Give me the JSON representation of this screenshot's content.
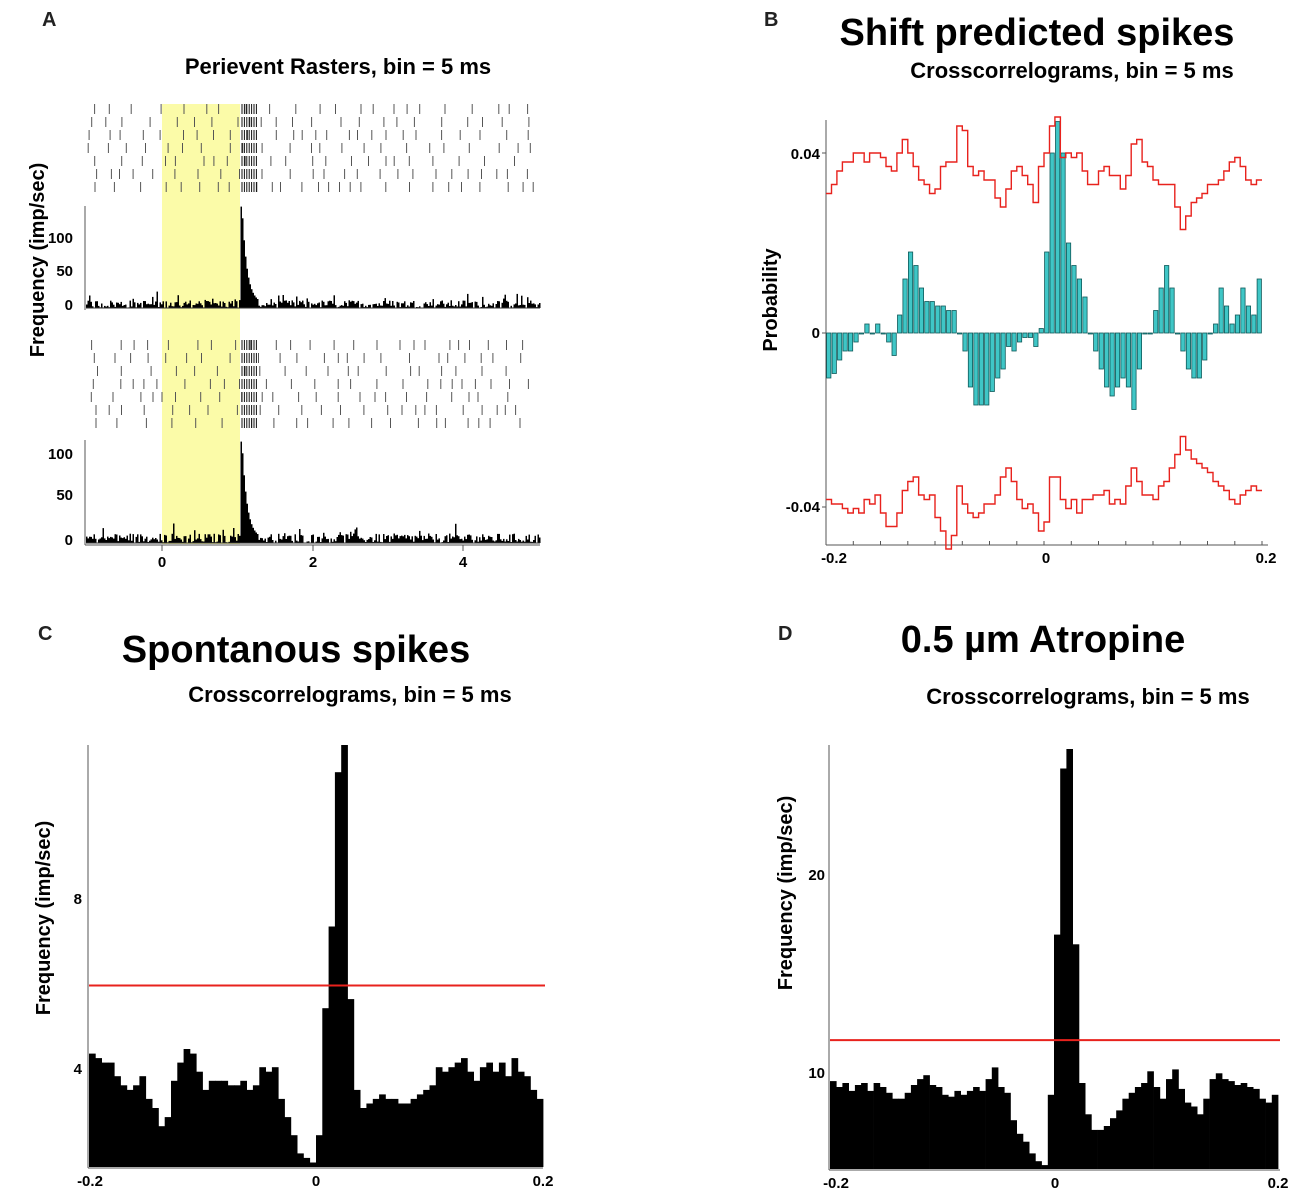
{
  "colors": {
    "bar": "#000000",
    "teal": "#3fc6c6",
    "teal_stroke": "#0f5a5a",
    "red": "#e8221d",
    "highlight": "#fbfba8",
    "axis": "#555555"
  },
  "panels": {
    "A": {
      "letter": "A",
      "subtitle": "Perievent Rasters, bin = 5 ms",
      "ylabel": "Frequency (imp/sec)",
      "xticks": [
        "0",
        "2",
        "4"
      ],
      "top_yticks": [
        "100",
        "50",
        "0"
      ],
      "bottom_yticks": [
        "100",
        "50",
        "0"
      ]
    },
    "B": {
      "letter": "B",
      "title": "Shift predicted spikes",
      "subtitle": "Crosscorrelograms, bin = 5 ms",
      "ylabel": "Probability",
      "xticks": [
        "-0.2",
        "0",
        "0.2"
      ],
      "yticks": [
        "0.04",
        "0",
        "-0.04"
      ]
    },
    "C": {
      "letter": "C",
      "title": "Spontanous spikes",
      "subtitle": "Crosscorrelograms, bin = 5 ms",
      "ylabel": "Frequency (imp/sec)",
      "xticks": [
        "-0.2",
        "0",
        "0.2"
      ],
      "yticks": [
        "8",
        "4"
      ]
    },
    "D": {
      "letter": "D",
      "title": "0.5 µm Atropine",
      "subtitle": "Crosscorrelograms, bin = 5 ms",
      "ylabel": "Frequency (imp/sec)",
      "xticks": [
        "-0.2",
        "0",
        "0.2"
      ],
      "yticks": [
        "20",
        "10"
      ]
    }
  },
  "chart_data": [
    {
      "id": "A-top-psth",
      "type": "bar",
      "title": "Perievent Rasters, bin = 5 ms",
      "ylabel": "Frequency (imp/sec)",
      "xlim": [
        -1,
        5
      ],
      "ylim": [
        0,
        130
      ],
      "stimulus_window": [
        0,
        1
      ],
      "peak": {
        "x": 1.05,
        "value": 128
      },
      "baseline": 10
    },
    {
      "id": "A-bottom-psth",
      "type": "bar",
      "ylabel": "Frequency (imp/sec)",
      "xlim": [
        -1,
        5
      ],
      "ylim": [
        0,
        130
      ],
      "stimulus_window": [
        0,
        1
      ],
      "peak": {
        "x": 1.05,
        "value": 128
      },
      "baseline": 12
    },
    {
      "id": "B",
      "type": "bar",
      "title": "Shift predicted spikes",
      "subtitle": "Crosscorrelograms, bin = 5 ms",
      "xlabel": "",
      "ylabel": "Probability",
      "xlim": [
        -0.2,
        0.2
      ],
      "ylim": [
        -0.048,
        0.048
      ],
      "x_start": -0.2,
      "bin": 0.005,
      "values": [
        -0.01,
        -0.009,
        -0.006,
        -0.004,
        -0.004,
        -0.002,
        0.0,
        0.002,
        0.0,
        0.002,
        0.0,
        -0.002,
        -0.005,
        0.004,
        0.012,
        0.018,
        0.015,
        0.01,
        0.007,
        0.007,
        0.006,
        0.006,
        0.005,
        0.005,
        0.0,
        -0.004,
        -0.012,
        -0.016,
        -0.016,
        -0.016,
        -0.013,
        -0.01,
        -0.008,
        -0.003,
        -0.004,
        -0.002,
        -0.001,
        -0.001,
        -0.003,
        0.001,
        0.018,
        0.04,
        0.047,
        0.04,
        0.02,
        0.015,
        0.012,
        0.008,
        0.0,
        -0.004,
        -0.008,
        -0.012,
        -0.014,
        -0.012,
        -0.01,
        -0.012,
        -0.017,
        -0.008,
        0.0,
        0.0,
        0.005,
        0.01,
        0.015,
        0.01,
        0.0,
        -0.004,
        -0.008,
        -0.01,
        -0.01,
        -0.006,
        0.0,
        0.002,
        0.01,
        0.006,
        0.002,
        0.004,
        0.01,
        0.006,
        0.004,
        0.012
      ],
      "upper_band": [
        0.031,
        0.033,
        0.036,
        0.038,
        0.038,
        0.04,
        0.04,
        0.038,
        0.04,
        0.04,
        0.039,
        0.037,
        0.036,
        0.04,
        0.043,
        0.04,
        0.037,
        0.034,
        0.033,
        0.031,
        0.032,
        0.037,
        0.038,
        0.038,
        0.046,
        0.045,
        0.037,
        0.035,
        0.036,
        0.034,
        0.034,
        0.03,
        0.028,
        0.032,
        0.036,
        0.037,
        0.035,
        0.033,
        0.029,
        0.037,
        0.04,
        0.046,
        0.048,
        0.039,
        0.04,
        0.039,
        0.04,
        0.036,
        0.033,
        0.033,
        0.036,
        0.037,
        0.035,
        0.035,
        0.032,
        0.035,
        0.042,
        0.043,
        0.038,
        0.037,
        0.034,
        0.033,
        0.033,
        0.033,
        0.028,
        0.023,
        0.026,
        0.029,
        0.03,
        0.031,
        0.033,
        0.033,
        0.034,
        0.036,
        0.038,
        0.039,
        0.037,
        0.034,
        0.033,
        0.034
      ],
      "lower_band": [
        -0.037,
        -0.038,
        -0.038,
        -0.039,
        -0.04,
        -0.039,
        -0.04,
        -0.037,
        -0.038,
        -0.036,
        -0.04,
        -0.043,
        -0.043,
        -0.04,
        -0.035,
        -0.033,
        -0.032,
        -0.036,
        -0.037,
        -0.036,
        -0.041,
        -0.044,
        -0.048,
        -0.045,
        -0.034,
        -0.038,
        -0.04,
        -0.041,
        -0.04,
        -0.038,
        -0.038,
        -0.036,
        -0.032,
        -0.03,
        -0.033,
        -0.037,
        -0.039,
        -0.038,
        -0.04,
        -0.044,
        -0.042,
        -0.032,
        -0.032,
        -0.037,
        -0.039,
        -0.037,
        -0.04,
        -0.037,
        -0.037,
        -0.036,
        -0.036,
        -0.035,
        -0.038,
        -0.037,
        -0.038,
        -0.034,
        -0.03,
        -0.033,
        -0.036,
        -0.036,
        -0.037,
        -0.034,
        -0.033,
        -0.03,
        -0.027,
        -0.023,
        -0.026,
        -0.028,
        -0.029,
        -0.03,
        -0.031,
        -0.033,
        -0.034,
        -0.035,
        -0.037,
        -0.038,
        -0.036,
        -0.035,
        -0.034,
        -0.035
      ]
    },
    {
      "id": "C",
      "type": "bar",
      "title": "Spontanous spikes",
      "subtitle": "Crosscorrelograms, bin = 5 ms",
      "xlabel": "",
      "ylabel": "Frequency (imp/sec)",
      "xlim": [
        -0.2,
        0.2
      ],
      "ylim": [
        1.5,
        10.8
      ],
      "x_start": -0.2,
      "bin": 0.005,
      "values": [
        4.0,
        3.9,
        3.8,
        3.8,
        3.5,
        3.3,
        3.2,
        3.3,
        3.5,
        3.0,
        2.8,
        2.4,
        2.6,
        3.4,
        3.8,
        4.1,
        4.0,
        3.6,
        3.2,
        3.4,
        3.4,
        3.4,
        3.3,
        3.3,
        3.4,
        3.2,
        3.3,
        3.7,
        3.6,
        3.7,
        3.0,
        2.6,
        2.2,
        1.8,
        1.7,
        1.6,
        2.2,
        5.0,
        6.8,
        10.2,
        10.8,
        5.2,
        3.2,
        2.8,
        2.9,
        3.0,
        3.1,
        3.0,
        3.0,
        2.9,
        2.9,
        3.0,
        3.1,
        3.2,
        3.3,
        3.7,
        3.6,
        3.7,
        3.8,
        3.9,
        3.6,
        3.4,
        3.7,
        3.8,
        3.6,
        3.8,
        3.5,
        3.9,
        3.6,
        3.5,
        3.2,
        3.0
      ],
      "reference_line": 5.5
    },
    {
      "id": "D",
      "type": "bar",
      "title": "0.5 µm Atropine",
      "subtitle": "Crosscorrelograms, bin = 5 ms",
      "xlabel": "",
      "ylabel": "Frequency (imp/sec)",
      "xlim": [
        -0.2,
        0.2
      ],
      "ylim": [
        5,
        26.5
      ],
      "x_start": -0.2,
      "bin": 0.005,
      "values": [
        9.5,
        9.2,
        9.4,
        9.0,
        9.3,
        9.4,
        9.0,
        9.4,
        9.2,
        8.9,
        8.6,
        8.6,
        8.9,
        9.3,
        9.6,
        9.8,
        9.3,
        9.2,
        8.8,
        8.7,
        9.0,
        8.8,
        9.0,
        9.2,
        9.0,
        9.6,
        10.2,
        9.2,
        8.9,
        7.5,
        6.8,
        6.4,
        5.8,
        5.4,
        5.2,
        8.8,
        17.0,
        25.5,
        26.5,
        16.5,
        9.4,
        7.8,
        7.0,
        7.0,
        7.2,
        7.6,
        8.0,
        8.6,
        8.9,
        9.2,
        9.4,
        10.0,
        9.2,
        8.6,
        9.6,
        10.1,
        9.1,
        8.4,
        8.2,
        7.8,
        8.6,
        9.6,
        9.9,
        9.6,
        9.5,
        9.3,
        9.4,
        9.2,
        9.1,
        8.6,
        8.4,
        8.8
      ],
      "reference_line": 11.6
    }
  ]
}
